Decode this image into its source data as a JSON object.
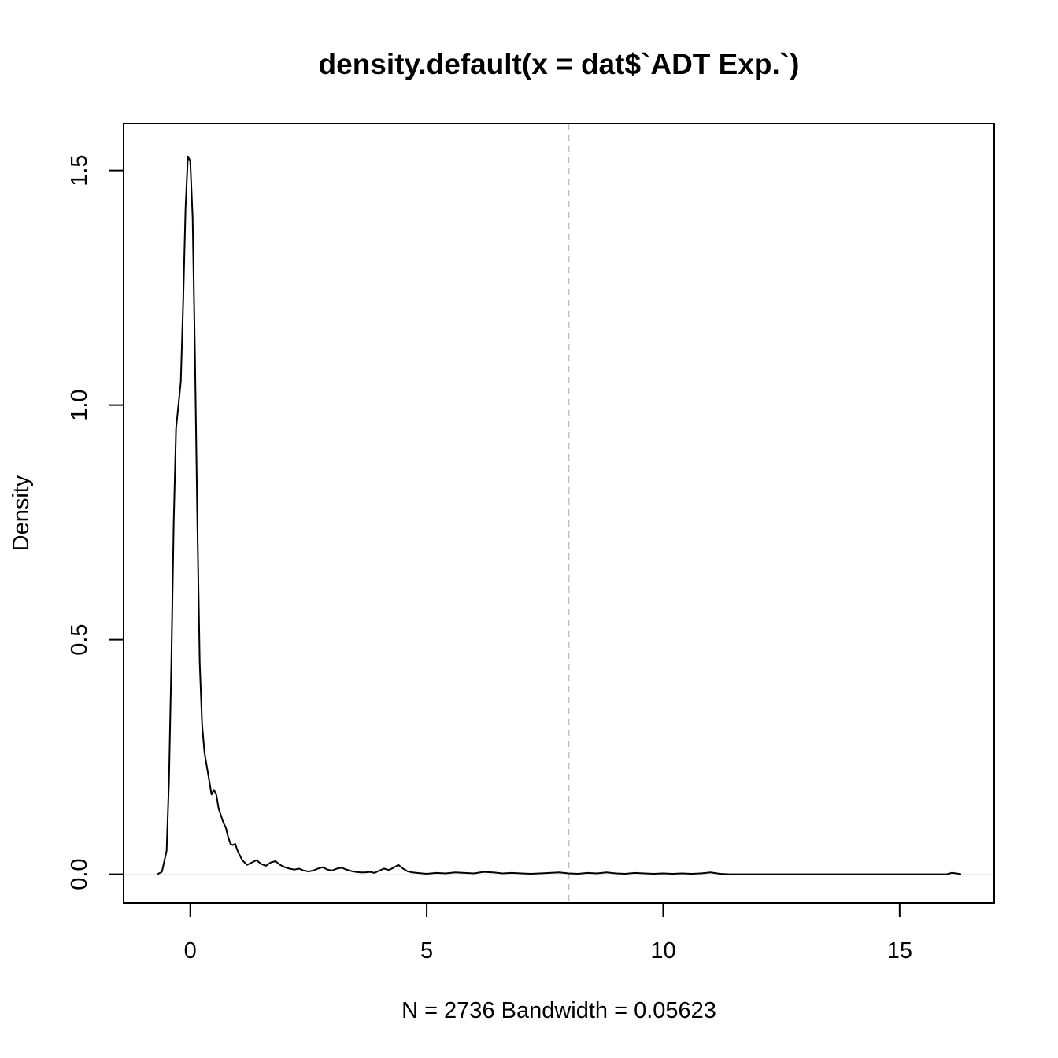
{
  "chart_data": {
    "type": "line",
    "title": "density.default(x = dat$`ADT Exp.`)",
    "xlabel": "N = 2736   Bandwidth = 0.05623",
    "ylabel": "Density",
    "xlim": [
      -1.41,
      17.0
    ],
    "ylim": [
      -0.061,
      1.6
    ],
    "x_ticks": [
      0,
      5,
      10,
      15
    ],
    "x_tick_labels": [
      "0",
      "5",
      "10",
      "15"
    ],
    "y_ticks": [
      0.0,
      0.5,
      1.0,
      1.5
    ],
    "y_tick_labels": [
      "0.0",
      "0.5",
      "1.0",
      "1.5"
    ],
    "grid": false,
    "line_color": "#000000",
    "baseline": {
      "y": 0,
      "color": "#eeeeee"
    },
    "vline": {
      "x": 8,
      "color": "#bebebe",
      "style": "dashed"
    },
    "series": [
      {
        "x": [
          -0.7,
          -0.6,
          -0.5,
          -0.45,
          -0.4,
          -0.35,
          -0.3,
          -0.25,
          -0.2,
          -0.15,
          -0.1,
          -0.05,
          0.0,
          0.05,
          0.1,
          0.15,
          0.2,
          0.25,
          0.3,
          0.35,
          0.4,
          0.45,
          0.5,
          0.55,
          0.6,
          0.7,
          0.75,
          0.8,
          0.85,
          0.9,
          0.95,
          1.0,
          1.1,
          1.2,
          1.3,
          1.4,
          1.5,
          1.6,
          1.7,
          1.8,
          1.9,
          2.0,
          2.1,
          2.2,
          2.3,
          2.4,
          2.5,
          2.6,
          2.7,
          2.8,
          2.9,
          3.0,
          3.1,
          3.2,
          3.3,
          3.4,
          3.5,
          3.6,
          3.7,
          3.8,
          3.9,
          4.0,
          4.1,
          4.2,
          4.3,
          4.4,
          4.5,
          4.6,
          4.7,
          4.8,
          4.9,
          5.0,
          5.2,
          5.4,
          5.6,
          5.8,
          6.0,
          6.2,
          6.4,
          6.6,
          6.8,
          7.0,
          7.2,
          7.4,
          7.6,
          7.8,
          8.0,
          8.2,
          8.4,
          8.6,
          8.8,
          9.0,
          9.2,
          9.4,
          9.6,
          9.8,
          10.0,
          10.2,
          10.4,
          10.6,
          10.8,
          11.0,
          11.2,
          11.4,
          12.0,
          13.0,
          14.0,
          15.0,
          15.5,
          16.0,
          16.1,
          16.2,
          16.3
        ],
        "y": [
          0.0,
          0.005,
          0.05,
          0.2,
          0.45,
          0.75,
          0.95,
          1.0,
          1.05,
          1.22,
          1.42,
          1.53,
          1.52,
          1.4,
          1.1,
          0.75,
          0.45,
          0.32,
          0.26,
          0.23,
          0.2,
          0.17,
          0.18,
          0.17,
          0.14,
          0.11,
          0.1,
          0.08,
          0.065,
          0.062,
          0.065,
          0.05,
          0.03,
          0.02,
          0.025,
          0.03,
          0.022,
          0.018,
          0.025,
          0.028,
          0.02,
          0.015,
          0.012,
          0.01,
          0.012,
          0.008,
          0.006,
          0.008,
          0.012,
          0.015,
          0.01,
          0.008,
          0.012,
          0.014,
          0.01,
          0.007,
          0.005,
          0.004,
          0.004,
          0.005,
          0.003,
          0.008,
          0.012,
          0.009,
          0.014,
          0.02,
          0.012,
          0.006,
          0.004,
          0.003,
          0.002,
          0.001,
          0.003,
          0.002,
          0.004,
          0.003,
          0.002,
          0.005,
          0.004,
          0.002,
          0.003,
          0.002,
          0.001,
          0.002,
          0.003,
          0.004,
          0.002,
          0.001,
          0.003,
          0.002,
          0.004,
          0.002,
          0.001,
          0.003,
          0.002,
          0.001,
          0.002,
          0.001,
          0.002,
          0.001,
          0.002,
          0.004,
          0.001,
          0.0,
          0.0,
          0.0,
          0.0,
          0.0,
          0.0,
          0.0,
          0.003,
          0.002,
          0.0
        ]
      }
    ]
  }
}
